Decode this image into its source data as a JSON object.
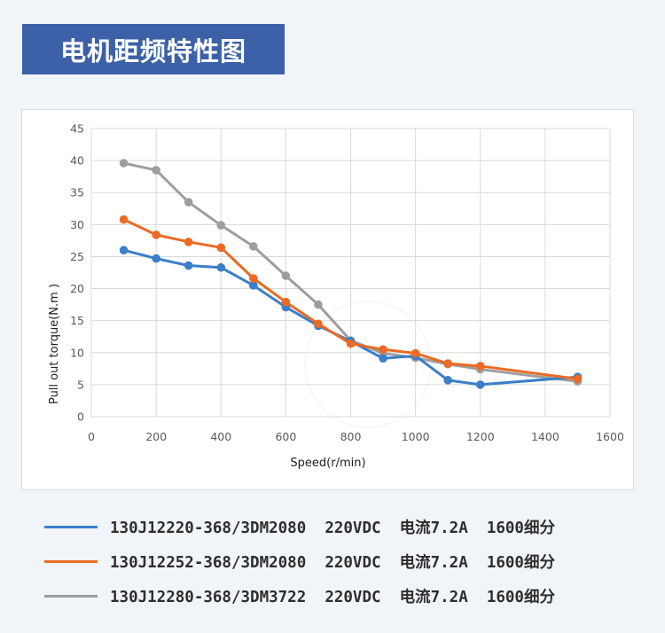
{
  "header": {
    "title": "电机距频特性图"
  },
  "colors": {
    "banner": "#3c61a8",
    "series": [
      "#3a7fc8",
      "#ec6a24",
      "#9e9e9e"
    ],
    "grid": "#d9d9d9",
    "axis_text": "#595959"
  },
  "chart_data": {
    "type": "line",
    "title": "",
    "xlabel": "Speed(r/min)",
    "ylabel": "Pull out torque(N.m )",
    "xlim": [
      0,
      1600
    ],
    "ylim": [
      0,
      45
    ],
    "x_ticks": [
      0,
      200,
      400,
      600,
      800,
      1000,
      1200,
      1400,
      1600
    ],
    "y_ticks": [
      0,
      5,
      10,
      15,
      20,
      25,
      30,
      35,
      40,
      45
    ],
    "grid": true,
    "legend_position": "bottom",
    "series": [
      {
        "name": "130J12220-368/3DM2080  220VDC  电流7.2A  1600细分",
        "color": "#3a7fc8",
        "x": [
          100,
          200,
          300,
          400,
          500,
          600,
          700,
          800,
          900,
          1000,
          1100,
          1200,
          1500
        ],
        "y": [
          26.0,
          24.7,
          23.6,
          23.3,
          20.5,
          17.1,
          14.2,
          11.8,
          9.1,
          9.5,
          5.7,
          5.0,
          6.2
        ]
      },
      {
        "name": "130J12252-368/3DM2080  220VDC  电流7.2A  1600细分",
        "color": "#ec6a24",
        "x": [
          100,
          200,
          300,
          400,
          500,
          600,
          700,
          800,
          900,
          1000,
          1100,
          1200,
          1500
        ],
        "y": [
          30.8,
          28.4,
          27.3,
          26.4,
          21.6,
          17.9,
          14.5,
          11.4,
          10.5,
          9.9,
          8.3,
          7.9,
          5.9
        ]
      },
      {
        "name": "130J12280-368/3DM3722  220VDC  电流7.2A  1600细分",
        "color": "#9e9e9e",
        "x": [
          100,
          200,
          300,
          400,
          500,
          600,
          700,
          800,
          900,
          1000,
          1100,
          1200,
          1500
        ],
        "y": [
          39.6,
          38.5,
          33.5,
          29.9,
          26.6,
          22.0,
          17.5,
          11.9,
          9.9,
          9.2,
          8.2,
          7.4,
          5.5
        ]
      }
    ]
  }
}
